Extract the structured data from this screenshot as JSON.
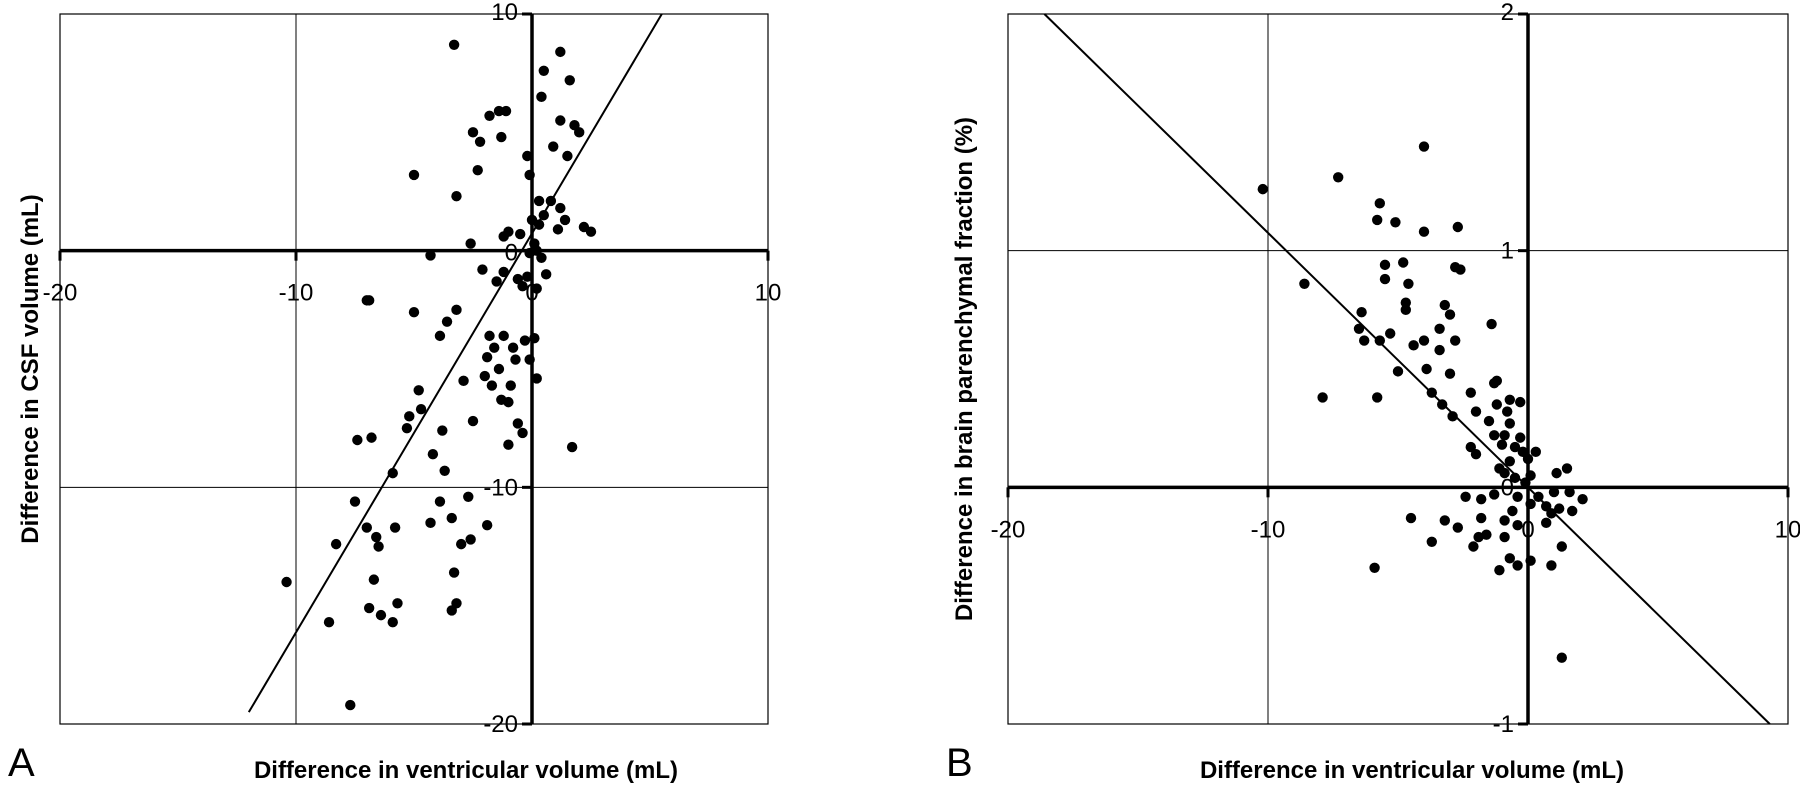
{
  "chart_data": [
    {
      "type": "scatter",
      "panel_label": "A",
      "xlabel": "Difference in ventricular volume (mL)",
      "ylabel": "Difference in CSF volume (mL)",
      "xlim": [
        -20,
        10
      ],
      "ylim": [
        -20,
        10
      ],
      "xticks": [
        -20,
        -10,
        0,
        10
      ],
      "yticks": [
        -20,
        -10,
        0,
        10
      ],
      "xtick_labels": [
        "-20",
        "-10",
        "0",
        "10"
      ],
      "ytick_labels": [
        "-20",
        "-10",
        "",
        "10"
      ],
      "grid": true,
      "trendline": {
        "x1": -12,
        "y1": -19.5,
        "x2": 5.5,
        "y2": 10
      },
      "points": [
        [
          -3.3,
          8.7
        ],
        [
          1.2,
          8.4
        ],
        [
          0.5,
          7.6
        ],
        [
          1.6,
          7.2
        ],
        [
          0.4,
          6.5
        ],
        [
          1.8,
          5.3
        ],
        [
          -1.4,
          5.9
        ],
        [
          -1.1,
          5.9
        ],
        [
          -1.8,
          5.7
        ],
        [
          1.2,
          5.5
        ],
        [
          -2.5,
          5.0
        ],
        [
          2.0,
          5.0
        ],
        [
          -2.2,
          4.6
        ],
        [
          -1.3,
          4.8
        ],
        [
          0.9,
          4.4
        ],
        [
          -0.2,
          4.0
        ],
        [
          1.5,
          4.0
        ],
        [
          -2.3,
          3.4
        ],
        [
          -0.1,
          3.2
        ],
        [
          -5.0,
          3.2
        ],
        [
          -3.2,
          2.3
        ],
        [
          0.3,
          2.1
        ],
        [
          0.8,
          2.1
        ],
        [
          1.2,
          1.8
        ],
        [
          0.5,
          1.5
        ],
        [
          1.4,
          1.3
        ],
        [
          0.0,
          1.3
        ],
        [
          0.3,
          1.1
        ],
        [
          1.1,
          0.9
        ],
        [
          2.2,
          1.0
        ],
        [
          2.5,
          0.8
        ],
        [
          -1.2,
          0.6
        ],
        [
          -1.0,
          0.8
        ],
        [
          -2.6,
          0.3
        ],
        [
          -0.5,
          0.7
        ],
        [
          0.1,
          0.3
        ],
        [
          -4.3,
          -0.2
        ],
        [
          -0.1,
          -0.1
        ],
        [
          0.2,
          0.0
        ],
        [
          0.4,
          -0.3
        ],
        [
          -2.1,
          -0.8
        ],
        [
          -1.2,
          -0.9
        ],
        [
          -0.2,
          -1.1
        ],
        [
          0.6,
          -1.0
        ],
        [
          -0.6,
          -1.2
        ],
        [
          -1.5,
          -1.3
        ],
        [
          -0.4,
          -1.5
        ],
        [
          0.2,
          -1.6
        ],
        [
          -6.9,
          -2.1
        ],
        [
          -7.0,
          -2.1
        ],
        [
          -5.0,
          -2.6
        ],
        [
          -3.2,
          -2.5
        ],
        [
          -3.6,
          -3.0
        ],
        [
          -3.9,
          -3.6
        ],
        [
          -1.8,
          -3.6
        ],
        [
          -1.2,
          -3.6
        ],
        [
          -0.3,
          -3.8
        ],
        [
          0.1,
          -3.7
        ],
        [
          -1.6,
          -4.1
        ],
        [
          -0.8,
          -4.1
        ],
        [
          -1.9,
          -4.5
        ],
        [
          -0.7,
          -4.6
        ],
        [
          -0.1,
          -4.6
        ],
        [
          0.2,
          -5.4
        ],
        [
          -1.4,
          -5.0
        ],
        [
          -2.0,
          -5.3
        ],
        [
          -1.7,
          -5.7
        ],
        [
          -4.8,
          -5.9
        ],
        [
          -0.9,
          -5.7
        ],
        [
          -2.9,
          -5.5
        ],
        [
          -1.3,
          -6.3
        ],
        [
          -5.2,
          -7.0
        ],
        [
          -1.0,
          -6.4
        ],
        [
          -4.7,
          -6.7
        ],
        [
          -2.5,
          -7.2
        ],
        [
          -0.6,
          -7.3
        ],
        [
          -5.3,
          -7.5
        ],
        [
          -3.8,
          -7.6
        ],
        [
          -0.4,
          -7.7
        ],
        [
          -7.4,
          -8.0
        ],
        [
          -6.8,
          -7.9
        ],
        [
          -1.0,
          -8.2
        ],
        [
          1.7,
          -8.3
        ],
        [
          -4.2,
          -8.6
        ],
        [
          -5.9,
          -9.4
        ],
        [
          -3.7,
          -9.3
        ],
        [
          -7.5,
          -10.6
        ],
        [
          -3.9,
          -10.6
        ],
        [
          -2.7,
          -10.4
        ],
        [
          -3.4,
          -11.3
        ],
        [
          -7.0,
          -11.7
        ],
        [
          -5.8,
          -11.7
        ],
        [
          -4.3,
          -11.5
        ],
        [
          -2.6,
          -12.2
        ],
        [
          -1.9,
          -11.6
        ],
        [
          -6.6,
          -12.1
        ],
        [
          -6.5,
          -12.5
        ],
        [
          -3.0,
          -12.4
        ],
        [
          -8.3,
          -12.4
        ],
        [
          -10.4,
          -14.0
        ],
        [
          -6.7,
          -13.9
        ],
        [
          -3.3,
          -13.6
        ],
        [
          -3.2,
          -14.9
        ],
        [
          -3.4,
          -15.2
        ],
        [
          -5.7,
          -14.9
        ],
        [
          -6.9,
          -15.1
        ],
        [
          -6.4,
          -15.4
        ],
        [
          -8.6,
          -15.7
        ],
        [
          -5.9,
          -15.7
        ],
        [
          -7.7,
          -19.2
        ]
      ]
    },
    {
      "type": "scatter",
      "panel_label": "B",
      "xlabel": "Difference in ventricular volume (mL)",
      "ylabel": "Difference in brain parenchymal fraction (%)",
      "xlim": [
        -20,
        10
      ],
      "ylim": [
        -1,
        2
      ],
      "xticks": [
        -20,
        -10,
        0,
        10
      ],
      "yticks": [
        -1,
        0,
        1,
        2
      ],
      "xtick_labels": [
        "-20",
        "-10",
        "0",
        "10"
      ],
      "ytick_labels": [
        "-1",
        "0",
        "1",
        "2"
      ],
      "grid": true,
      "trendline": {
        "x1": -18.6,
        "y1": 2.0,
        "x2": 9.3,
        "y2": -1.0
      },
      "points": [
        [
          -10.2,
          1.26
        ],
        [
          -7.3,
          1.31
        ],
        [
          -4.0,
          1.44
        ],
        [
          -5.7,
          1.2
        ],
        [
          -5.8,
          1.13
        ],
        [
          -5.1,
          1.12
        ],
        [
          -2.7,
          1.1
        ],
        [
          -4.0,
          1.08
        ],
        [
          -8.6,
          0.86
        ],
        [
          -5.5,
          0.94
        ],
        [
          -4.8,
          0.95
        ],
        [
          -5.5,
          0.88
        ],
        [
          -4.6,
          0.86
        ],
        [
          -4.7,
          0.78
        ],
        [
          -3.2,
          0.77
        ],
        [
          -2.8,
          0.93
        ],
        [
          -2.6,
          0.92
        ],
        [
          -6.4,
          0.74
        ],
        [
          -4.7,
          0.75
        ],
        [
          -3.0,
          0.73
        ],
        [
          -3.4,
          0.67
        ],
        [
          -1.4,
          0.69
        ],
        [
          -6.5,
          0.67
        ],
        [
          -5.3,
          0.65
        ],
        [
          -4.0,
          0.62
        ],
        [
          -2.8,
          0.62
        ],
        [
          -4.4,
          0.6
        ],
        [
          -3.4,
          0.58
        ],
        [
          -6.3,
          0.62
        ],
        [
          -5.7,
          0.62
        ],
        [
          -3.9,
          0.5
        ],
        [
          -3.0,
          0.48
        ],
        [
          -1.2,
          0.45
        ],
        [
          -1.3,
          0.44
        ],
        [
          -5.8,
          0.38
        ],
        [
          -7.9,
          0.38
        ],
        [
          -5.0,
          0.49
        ],
        [
          -2.2,
          0.4
        ],
        [
          -3.7,
          0.4
        ],
        [
          -3.3,
          0.35
        ],
        [
          -2.0,
          0.32
        ],
        [
          -1.2,
          0.35
        ],
        [
          -0.7,
          0.37
        ],
        [
          -0.3,
          0.36
        ],
        [
          -0.8,
          0.32
        ],
        [
          -0.7,
          0.27
        ],
        [
          -1.5,
          0.28
        ],
        [
          -2.9,
          0.3
        ],
        [
          -1.3,
          0.22
        ],
        [
          -0.9,
          0.22
        ],
        [
          -0.3,
          0.21
        ],
        [
          -1.0,
          0.18
        ],
        [
          -0.5,
          0.17
        ],
        [
          -2.2,
          0.17
        ],
        [
          -0.2,
          0.15
        ],
        [
          0.3,
          0.15
        ],
        [
          -2.0,
          0.14
        ],
        [
          0.0,
          0.12
        ],
        [
          -0.7,
          0.11
        ],
        [
          -1.1,
          0.08
        ],
        [
          -0.9,
          0.06
        ],
        [
          0.1,
          0.05
        ],
        [
          1.1,
          0.06
        ],
        [
          -0.5,
          0.04
        ],
        [
          -0.1,
          0.02
        ],
        [
          1.5,
          0.08
        ],
        [
          -2.4,
          -0.04
        ],
        [
          -1.8,
          -0.05
        ],
        [
          -1.3,
          -0.03
        ],
        [
          -0.4,
          -0.04
        ],
        [
          0.4,
          -0.04
        ],
        [
          1.0,
          -0.02
        ],
        [
          1.6,
          -0.02
        ],
        [
          2.1,
          -0.05
        ],
        [
          0.1,
          -0.07
        ],
        [
          0.7,
          -0.08
        ],
        [
          -0.6,
          -0.1
        ],
        [
          1.2,
          -0.09
        ],
        [
          1.7,
          -0.1
        ],
        [
          0.9,
          -0.11
        ],
        [
          -4.5,
          -0.13
        ],
        [
          -3.2,
          -0.14
        ],
        [
          -1.8,
          -0.13
        ],
        [
          -0.9,
          -0.14
        ],
        [
          -2.7,
          -0.17
        ],
        [
          -1.6,
          -0.2
        ],
        [
          -0.4,
          -0.16
        ],
        [
          0.7,
          -0.15
        ],
        [
          -1.9,
          -0.21
        ],
        [
          -0.9,
          -0.21
        ],
        [
          -3.7,
          -0.23
        ],
        [
          -2.1,
          -0.25
        ],
        [
          1.3,
          -0.25
        ],
        [
          -0.7,
          -0.3
        ],
        [
          0.1,
          -0.31
        ],
        [
          -0.4,
          -0.33
        ],
        [
          0.9,
          -0.33
        ],
        [
          -1.1,
          -0.35
        ],
        [
          -5.9,
          -0.34
        ],
        [
          1.3,
          -0.72
        ]
      ]
    }
  ]
}
